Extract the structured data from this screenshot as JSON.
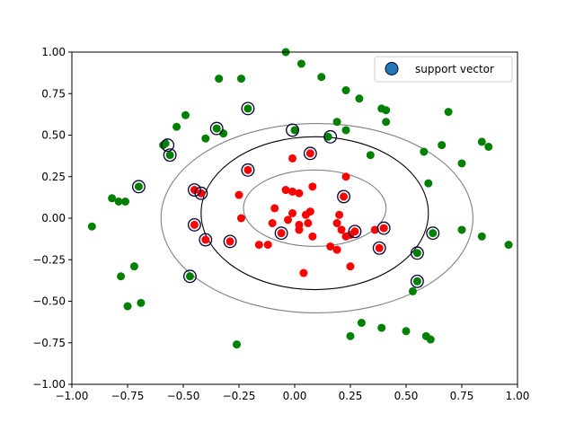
{
  "chart_data": {
    "type": "scatter",
    "title": "",
    "xlabel": "",
    "ylabel": "",
    "xlim": [
      -1.0,
      1.0
    ],
    "ylim": [
      -1.0,
      1.0
    ],
    "x_ticks": [
      -1.0,
      -0.75,
      -0.5,
      -0.25,
      0.0,
      0.25,
      0.5,
      0.75,
      1.0
    ],
    "y_ticks": [
      -1.0,
      -0.75,
      -0.5,
      -0.25,
      0.0,
      0.25,
      0.5,
      0.75,
      1.0
    ],
    "x_tick_labels": [
      "−1.00",
      "−0.75",
      "−0.50",
      "−0.25",
      "0.00",
      "0.25",
      "0.50",
      "0.75",
      "1.00"
    ],
    "y_tick_labels": [
      "−1.00",
      "−0.75",
      "−0.50",
      "−0.25",
      "0.00",
      "0.25",
      "0.50",
      "0.75",
      "1.00"
    ],
    "grid": false,
    "legend": {
      "position": "upper right",
      "label": "support vector",
      "marker_color": "#1f77b4",
      "edge_color": "#000033"
    },
    "colors": {
      "inner_class": "#ff0000",
      "outer_class": "#008000",
      "decision_boundary": "#000000",
      "margins": "#808080"
    },
    "decision_contours": [
      {
        "level": "margin-outer",
        "cx": 0.1,
        "cy": 0.0,
        "rx": 0.7,
        "ry": 0.57,
        "color": "#808080"
      },
      {
        "level": "boundary",
        "cx": 0.09,
        "cy": 0.03,
        "rx": 0.51,
        "ry": 0.46,
        "color": "#000000"
      },
      {
        "level": "margin-inner",
        "cx": 0.09,
        "cy": 0.06,
        "rx": 0.32,
        "ry": 0.23,
        "color": "#808080"
      }
    ],
    "series": [
      {
        "name": "",
        "color": "#ff0000",
        "points": [
          [
            -0.01,
            0.36
          ],
          [
            0.07,
            0.39
          ],
          [
            0.23,
            0.25
          ],
          [
            -0.21,
            0.29
          ],
          [
            -0.45,
            0.17
          ],
          [
            -0.42,
            0.15
          ],
          [
            -0.25,
            0.14
          ],
          [
            -0.04,
            0.17
          ],
          [
            -0.01,
            0.16
          ],
          [
            0.02,
            0.15
          ],
          [
            0.08,
            0.19
          ],
          [
            0.22,
            0.13
          ],
          [
            -0.09,
            0.06
          ],
          [
            -0.03,
            -0.01
          ],
          [
            -0.01,
            0.03
          ],
          [
            0.02,
            -0.04
          ],
          [
            0.05,
            0.02
          ],
          [
            0.07,
            0.04
          ],
          [
            0.06,
            -0.03
          ],
          [
            0.2,
            0.02
          ],
          [
            0.19,
            -0.03
          ],
          [
            0.21,
            -0.07
          ],
          [
            0.23,
            -0.11
          ],
          [
            0.25,
            -0.1
          ],
          [
            -0.24,
            0.0
          ],
          [
            -0.45,
            -0.04
          ],
          [
            -0.1,
            -0.03
          ],
          [
            -0.06,
            -0.09
          ],
          [
            0.02,
            -0.07
          ],
          [
            0.08,
            -0.11
          ],
          [
            -0.16,
            -0.16
          ],
          [
            -0.12,
            -0.16
          ],
          [
            -0.4,
            -0.13
          ],
          [
            -0.29,
            -0.14
          ],
          [
            0.16,
            -0.17
          ],
          [
            0.19,
            -0.19
          ],
          [
            0.27,
            -0.08
          ],
          [
            0.36,
            -0.07
          ],
          [
            0.38,
            -0.18
          ],
          [
            0.4,
            -0.06
          ],
          [
            0.25,
            -0.29
          ],
          [
            0.04,
            -0.33
          ]
        ]
      },
      {
        "name": "",
        "color": "#008000",
        "points": [
          [
            -0.04,
            1.0
          ],
          [
            0.03,
            0.93
          ],
          [
            -0.34,
            0.84
          ],
          [
            -0.24,
            0.84
          ],
          [
            0.12,
            0.85
          ],
          [
            0.23,
            0.77
          ],
          [
            0.29,
            0.72
          ],
          [
            -0.21,
            0.66
          ],
          [
            0.39,
            0.66
          ],
          [
            0.41,
            0.65
          ],
          [
            0.69,
            0.64
          ],
          [
            -0.49,
            0.62
          ],
          [
            0.19,
            0.58
          ],
          [
            0.41,
            0.58
          ],
          [
            -0.53,
            0.55
          ],
          [
            -0.35,
            0.54
          ],
          [
            0.0,
            0.53
          ],
          [
            -0.32,
            0.51
          ],
          [
            0.23,
            0.53
          ],
          [
            0.15,
            0.49
          ],
          [
            -0.4,
            0.48
          ],
          [
            -0.58,
            0.45
          ],
          [
            -0.59,
            0.44
          ],
          [
            0.66,
            0.44
          ],
          [
            0.84,
            0.46
          ],
          [
            0.87,
            0.43
          ],
          [
            -0.56,
            0.38
          ],
          [
            0.34,
            0.38
          ],
          [
            0.58,
            0.4
          ],
          [
            0.75,
            0.33
          ],
          [
            -0.7,
            0.19
          ],
          [
            0.6,
            0.21
          ],
          [
            -0.82,
            0.12
          ],
          [
            -0.79,
            0.1
          ],
          [
            -0.76,
            0.1
          ],
          [
            -0.91,
            -0.05
          ],
          [
            0.62,
            -0.09
          ],
          [
            0.75,
            -0.07
          ],
          [
            0.84,
            -0.11
          ],
          [
            0.96,
            -0.16
          ],
          [
            0.55,
            -0.21
          ],
          [
            -0.72,
            -0.29
          ],
          [
            -0.78,
            -0.35
          ],
          [
            -0.47,
            -0.35
          ],
          [
            0.55,
            -0.38
          ],
          [
            0.53,
            -0.44
          ],
          [
            -0.69,
            -0.51
          ],
          [
            -0.75,
            -0.53
          ],
          [
            0.3,
            -0.63
          ],
          [
            0.39,
            -0.66
          ],
          [
            0.5,
            -0.68
          ],
          [
            0.59,
            -0.71
          ],
          [
            0.61,
            -0.73
          ],
          [
            0.25,
            -0.71
          ],
          [
            -0.26,
            -0.76
          ]
        ]
      }
    ],
    "support_vectors": [
      [
        -0.01,
        0.53
      ],
      [
        0.16,
        0.49
      ],
      [
        -0.21,
        0.66
      ],
      [
        -0.35,
        0.54
      ],
      [
        -0.57,
        0.44
      ],
      [
        -0.56,
        0.38
      ],
      [
        -0.7,
        0.19
      ],
      [
        0.07,
        0.39
      ],
      [
        -0.21,
        0.29
      ],
      [
        -0.45,
        0.17
      ],
      [
        -0.42,
        0.15
      ],
      [
        0.22,
        0.13
      ],
      [
        -0.45,
        -0.04
      ],
      [
        -0.4,
        -0.13
      ],
      [
        -0.29,
        -0.14
      ],
      [
        -0.06,
        -0.09
      ],
      [
        0.27,
        -0.08
      ],
      [
        0.4,
        -0.06
      ],
      [
        0.38,
        -0.18
      ],
      [
        0.62,
        -0.09
      ],
      [
        0.55,
        -0.21
      ],
      [
        0.55,
        -0.38
      ],
      [
        -0.47,
        -0.35
      ]
    ]
  }
}
